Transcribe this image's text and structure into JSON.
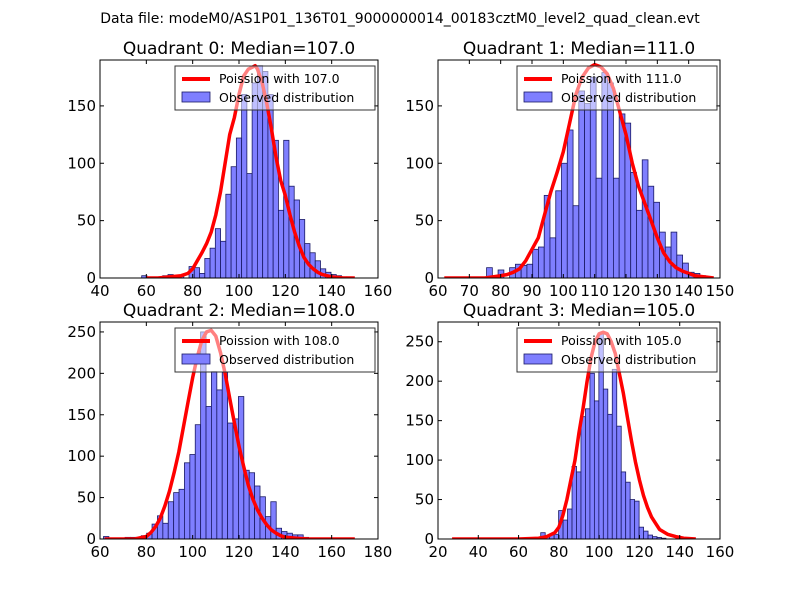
{
  "figure": {
    "suptitle": "Data file: modeM0/AS1P01_136T01_9000000014_00183cztM0_level2_quad_clean.evt"
  },
  "colors": {
    "bar_fill": "#7f7fff",
    "bar_edge": "#1a1a66",
    "poisson_line": "#ff0000",
    "legend_edge": "#333333"
  },
  "chart_data": [
    {
      "type": "bar",
      "title": "Quadrant 0: Median=107.0",
      "xlabel": "",
      "ylabel": "",
      "xlim": [
        40,
        160
      ],
      "ylim": [
        0,
        190
      ],
      "xticks": [
        40,
        60,
        80,
        100,
        120,
        140,
        160
      ],
      "yticks": [
        0,
        50,
        100,
        150
      ],
      "grid": false,
      "legend": {
        "position": "top-right",
        "entries": [
          "Poission with 107.0",
          "Observed distribution"
        ]
      },
      "histogram": {
        "name": "Observed distribution",
        "bin_start": 58.0,
        "bin_width": 2.27,
        "counts": [
          2,
          0,
          0,
          0,
          2,
          3,
          2,
          2,
          0,
          10,
          9,
          4,
          17,
          26,
          43,
          32,
          73,
          97,
          122,
          160,
          91,
          170,
          185,
          180,
          160,
          120,
          59,
          120,
          80,
          68,
          51,
          30,
          22,
          15,
          8,
          5,
          3,
          2,
          1,
          1,
          0
        ]
      },
      "poisson": {
        "name": "Poission with 107.0",
        "x": [
          60,
          65,
          70,
          75,
          78,
          80,
          82,
          84,
          86,
          88,
          90,
          92,
          94,
          96,
          98,
          100,
          102,
          104,
          106,
          107,
          108,
          110,
          112,
          114,
          116,
          118,
          120,
          122,
          124,
          126,
          128,
          130,
          132,
          134,
          136,
          138,
          140,
          145,
          150
        ],
        "y": [
          0,
          0,
          1,
          2,
          4,
          8,
          15,
          22,
          30,
          40,
          55,
          75,
          100,
          125,
          140,
          160,
          176,
          182,
          184,
          185,
          182,
          170,
          152,
          130,
          105,
          85,
          72,
          55,
          40,
          28,
          18,
          12,
          8,
          5,
          3,
          2,
          1,
          0,
          0
        ]
      }
    },
    {
      "type": "bar",
      "title": "Quadrant 1: Median=111.0",
      "xlabel": "",
      "ylabel": "",
      "xlim": [
        60,
        150
      ],
      "ylim": [
        0,
        190
      ],
      "xticks": [
        60,
        70,
        80,
        90,
        100,
        110,
        120,
        130,
        140,
        150
      ],
      "yticks": [
        0,
        50,
        100,
        150
      ],
      "grid": false,
      "legend": {
        "position": "top-right",
        "entries": [
          "Poission with 111.0",
          "Observed distribution"
        ]
      },
      "histogram": {
        "name": "Observed distribution",
        "bin_start": 75.5,
        "bin_width": 1.84,
        "counts": [
          9,
          0,
          7,
          0,
          9,
          12,
          11,
          12,
          25,
          27,
          72,
          35,
          76,
          100,
          129,
          63,
          163,
          152,
          175,
          87,
          179,
          170,
          87,
          143,
          135,
          92,
          59,
          103,
          80,
          66,
          40,
          27,
          40,
          20,
          13,
          5,
          4,
          2,
          1,
          0
        ]
      },
      "poisson": {
        "name": "Poission with 111.0",
        "x": [
          62,
          70,
          75,
          80,
          82,
          84,
          86,
          88,
          90,
          92,
          94,
          96,
          98,
          100,
          102,
          104,
          106,
          108,
          110,
          112,
          114,
          116,
          118,
          120,
          122,
          124,
          126,
          128,
          130,
          132,
          134,
          136,
          138,
          140,
          142,
          145,
          148
        ],
        "y": [
          0,
          0,
          0,
          2,
          3,
          5,
          8,
          15,
          25,
          35,
          55,
          75,
          92,
          110,
          135,
          160,
          175,
          183,
          186,
          184,
          178,
          165,
          145,
          125,
          100,
          80,
          65,
          50,
          35,
          22,
          14,
          9,
          6,
          4,
          2,
          1,
          0
        ]
      }
    },
    {
      "type": "bar",
      "title": "Quadrant 2: Median=108.0",
      "xlabel": "",
      "ylabel": "",
      "xlim": [
        60,
        180
      ],
      "ylim": [
        0,
        262
      ],
      "xticks": [
        60,
        80,
        100,
        120,
        140,
        160,
        180
      ],
      "yticks": [
        0,
        50,
        100,
        150,
        200,
        250
      ],
      "grid": false,
      "legend": {
        "position": "top-right",
        "entries": [
          "Poission with 108.0",
          "Observed distribution"
        ]
      },
      "histogram": {
        "name": "Observed distribution",
        "bin_start": 61.5,
        "bin_width": 2.33,
        "counts": [
          3,
          0,
          0,
          0,
          2,
          2,
          2,
          4,
          7,
          18,
          28,
          19,
          45,
          56,
          60,
          92,
          102,
          138,
          250,
          160,
          202,
          180,
          201,
          140,
          145,
          172,
          83,
          80,
          64,
          51,
          27,
          45,
          13,
          9,
          7,
          5,
          5,
          2,
          1,
          0
        ]
      },
      "poisson": {
        "name": "Poission with 108.0",
        "x": [
          62,
          70,
          75,
          80,
          82,
          84,
          86,
          88,
          90,
          92,
          94,
          96,
          98,
          100,
          102,
          104,
          106,
          108,
          110,
          112,
          114,
          116,
          118,
          120,
          122,
          124,
          126,
          128,
          130,
          132,
          134,
          136,
          138,
          140,
          145,
          150,
          160,
          170
        ],
        "y": [
          0,
          0,
          0,
          3,
          8,
          15,
          25,
          40,
          58,
          80,
          105,
          135,
          165,
          195,
          220,
          240,
          250,
          252,
          245,
          225,
          200,
          170,
          140,
          112,
          88,
          65,
          48,
          35,
          25,
          17,
          11,
          7,
          4,
          2,
          1,
          0,
          0,
          0
        ]
      }
    },
    {
      "type": "bar",
      "title": "Quadrant 3: Median=105.0",
      "xlabel": "",
      "ylabel": "",
      "xlim": [
        20,
        160
      ],
      "ylim": [
        0,
        275
      ],
      "xticks": [
        20,
        40,
        60,
        80,
        100,
        120,
        140,
        160
      ],
      "yticks": [
        0,
        50,
        100,
        150,
        200,
        250
      ],
      "grid": false,
      "legend": {
        "position": "top-right",
        "entries": [
          "Poission with 105.0",
          "Observed distribution"
        ]
      },
      "histogram": {
        "name": "Observed distribution",
        "bin_start": 71.0,
        "bin_width": 2.22,
        "counts": [
          8,
          4,
          6,
          6,
          36,
          24,
          38,
          92,
          85,
          155,
          165,
          210,
          175,
          260,
          190,
          158,
          215,
          143,
          85,
          72,
          50,
          48,
          15,
          10,
          5,
          3,
          2,
          1
        ]
      },
      "poisson": {
        "name": "Poission with 105.0",
        "x": [
          27,
          40,
          60,
          70,
          74,
          78,
          80,
          82,
          84,
          86,
          88,
          90,
          92,
          94,
          96,
          98,
          100,
          102,
          104,
          106,
          108,
          110,
          112,
          114,
          116,
          118,
          120,
          122,
          124,
          126,
          128,
          130,
          134,
          138,
          142,
          148
        ],
        "y": [
          0,
          0,
          0,
          1,
          3,
          8,
          15,
          30,
          50,
          75,
          100,
          135,
          165,
          200,
          230,
          250,
          260,
          262,
          260,
          250,
          235,
          210,
          185,
          155,
          125,
          98,
          75,
          55,
          40,
          28,
          20,
          12,
          6,
          3,
          1,
          0
        ]
      }
    }
  ]
}
